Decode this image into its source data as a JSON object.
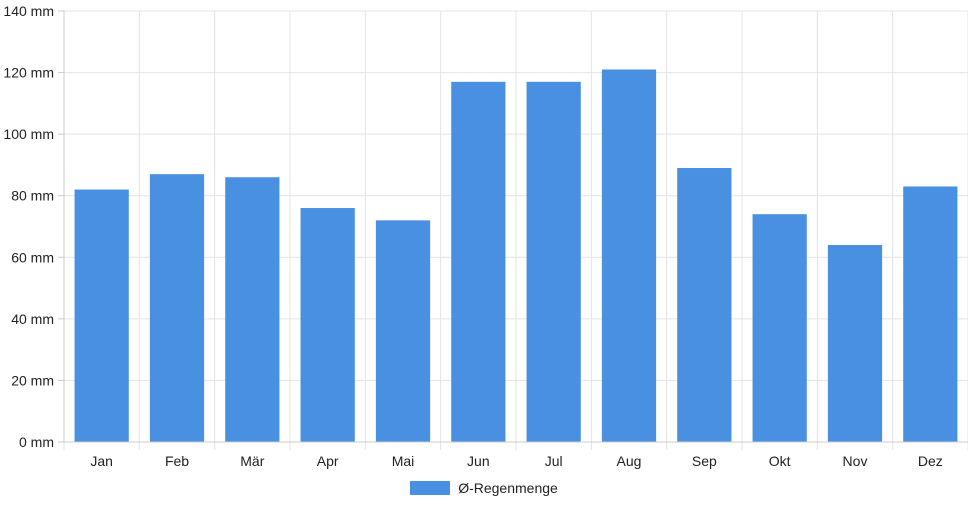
{
  "chart_data": {
    "type": "bar",
    "categories": [
      "Jan",
      "Feb",
      "Mär",
      "Apr",
      "Mai",
      "Jun",
      "Jul",
      "Aug",
      "Sep",
      "Okt",
      "Nov",
      "Dez"
    ],
    "series": [
      {
        "name": "Ø-Regenmenge",
        "values": [
          82,
          87,
          86,
          76,
          72,
          117,
          117,
          121,
          89,
          74,
          64,
          83
        ],
        "color": "#4a90e2"
      }
    ],
    "y_ticks": [
      "0 mm",
      "20 mm",
      "40 mm",
      "60 mm",
      "80 mm",
      "100 mm",
      "120 mm",
      "140 mm"
    ],
    "ylim": [
      0,
      140
    ],
    "y_step": 20,
    "grid": true,
    "legend_position": "bottom"
  }
}
